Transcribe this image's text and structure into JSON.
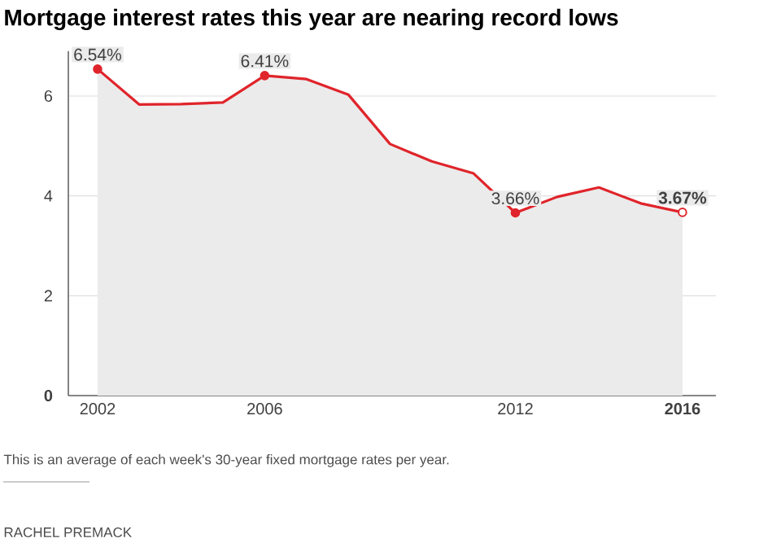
{
  "chart_data": {
    "type": "area",
    "title": "Mortgage interest rates this year are nearing record lows",
    "x": [
      2002,
      2003,
      2004,
      2005,
      2006,
      2007,
      2008,
      2009,
      2010,
      2011,
      2012,
      2013,
      2014,
      2015,
      2016
    ],
    "series": [
      {
        "color": "#e0242b",
        "values": [
          6.54,
          5.83,
          5.84,
          5.87,
          6.41,
          6.34,
          6.03,
          5.04,
          4.69,
          4.45,
          3.66,
          3.98,
          4.17,
          3.85,
          3.67
        ],
        "value_labels": [
          "6.54%",
          null,
          null,
          null,
          "6.41%",
          null,
          null,
          null,
          null,
          null,
          "3.66%",
          null,
          null,
          null,
          "3.67%"
        ]
      }
    ],
    "xlim": [
      2001.3,
      2016.8
    ],
    "ylim": [
      0,
      6.9
    ],
    "xticks": [
      2002,
      2006,
      2012,
      2016
    ],
    "yticks": [
      0,
      2,
      4,
      6
    ],
    "grid": "y",
    "annotations": [
      "This is an average of each week's 30-year fixed mortgage rates per year.",
      "RACHEL PREMACK"
    ]
  }
}
